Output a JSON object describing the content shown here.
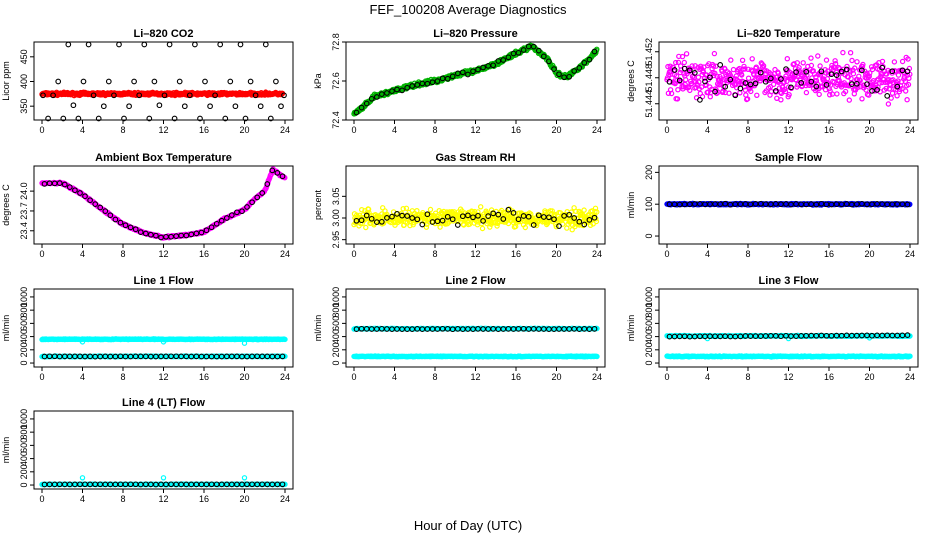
{
  "figure": {
    "title": "FEF_100208  Average Diagnostics",
    "xlabel": "Hour of Day (UTC)"
  },
  "chart_data": [
    {
      "type": "scatter",
      "title": "Li–820 CO2",
      "ylabel": "Licor ppm",
      "xlim": [
        0,
        24
      ],
      "ylim": [
        322,
        480
      ],
      "xticks": [
        0,
        4,
        8,
        12,
        16,
        20,
        24
      ],
      "yticks": [
        350,
        400,
        450
      ],
      "ytick_labels": [
        "350",
        "400",
        "450"
      ],
      "colors": {
        "dense": "#ff0000",
        "avg": "#000000"
      },
      "dense": {
        "kind": "noise",
        "x0": 0,
        "x1": 23.8,
        "base": [
          [
            0,
            375
          ],
          [
            24,
            375
          ]
        ],
        "noise": 4
      },
      "avg": {
        "kind": "list",
        "points": [
          [
            0.1,
            372
          ],
          [
            0.6,
            325
          ],
          [
            1.1,
            372
          ],
          [
            1.6,
            400
          ],
          [
            2.1,
            325
          ],
          [
            2.6,
            475
          ],
          [
            3.1,
            352
          ],
          [
            3.6,
            325
          ],
          [
            4.1,
            400
          ],
          [
            4.6,
            475
          ],
          [
            5.1,
            372
          ],
          [
            5.6,
            325
          ],
          [
            6.1,
            350
          ],
          [
            6.6,
            400
          ],
          [
            7.1,
            372
          ],
          [
            7.6,
            475
          ],
          [
            8.1,
            325
          ],
          [
            8.6,
            350
          ],
          [
            9.1,
            400
          ],
          [
            9.6,
            372
          ],
          [
            10.1,
            475
          ],
          [
            10.6,
            325
          ],
          [
            11.1,
            400
          ],
          [
            11.6,
            352
          ],
          [
            12.1,
            372
          ],
          [
            12.6,
            475
          ],
          [
            13.1,
            325
          ],
          [
            13.6,
            400
          ],
          [
            14.1,
            350
          ],
          [
            14.6,
            372
          ],
          [
            15.1,
            475
          ],
          [
            15.6,
            325
          ],
          [
            16.1,
            400
          ],
          [
            16.6,
            350
          ],
          [
            17.1,
            372
          ],
          [
            17.6,
            475
          ],
          [
            18.1,
            325
          ],
          [
            18.6,
            400
          ],
          [
            19.1,
            350
          ],
          [
            19.6,
            475
          ],
          [
            20.1,
            325
          ],
          [
            20.6,
            400
          ],
          [
            21.1,
            372
          ],
          [
            21.6,
            350
          ],
          [
            22.1,
            475
          ],
          [
            22.6,
            325
          ],
          [
            23.1,
            400
          ],
          [
            23.6,
            350
          ],
          [
            23.9,
            372
          ]
        ]
      }
    },
    {
      "type": "scatter",
      "title": "Li–820 Pressure",
      "ylabel": "kPa",
      "xlim": [
        0,
        24
      ],
      "ylim": [
        72.4,
        72.8
      ],
      "xticks": [
        0,
        4,
        8,
        12,
        16,
        20,
        24
      ],
      "yticks": [
        72.4,
        72.6,
        72.8
      ],
      "ytick_labels": [
        "72.4",
        "72.6",
        "72.8"
      ],
      "colors": {
        "dense": "#00b300",
        "avg": "#000000"
      },
      "dense": {
        "kind": "noise",
        "x0": 0,
        "x1": 24,
        "base": [
          [
            0,
            72.43
          ],
          [
            1,
            72.47
          ],
          [
            2,
            72.52
          ],
          [
            4,
            72.55
          ],
          [
            6,
            72.58
          ],
          [
            8,
            72.6
          ],
          [
            10,
            72.63
          ],
          [
            12,
            72.65
          ],
          [
            14,
            72.69
          ],
          [
            16,
            72.74
          ],
          [
            17.5,
            72.78
          ],
          [
            19,
            72.72
          ],
          [
            20,
            72.64
          ],
          [
            21,
            72.62
          ],
          [
            22,
            72.66
          ],
          [
            23,
            72.7
          ],
          [
            24,
            72.76
          ]
        ],
        "noise": 0.015
      },
      "avg": {
        "kind": "curve",
        "x0": 0.25,
        "x1": 23.75,
        "step": 0.5,
        "base": [
          [
            0,
            72.43
          ],
          [
            1,
            72.47
          ],
          [
            2,
            72.52
          ],
          [
            4,
            72.55
          ],
          [
            6,
            72.58
          ],
          [
            8,
            72.6
          ],
          [
            10,
            72.63
          ],
          [
            12,
            72.65
          ],
          [
            14,
            72.69
          ],
          [
            16,
            72.74
          ],
          [
            17.5,
            72.78
          ],
          [
            19,
            72.72
          ],
          [
            20,
            72.64
          ],
          [
            21,
            72.62
          ],
          [
            22,
            72.66
          ],
          [
            23,
            72.7
          ],
          [
            24,
            72.76
          ]
        ],
        "noise": 0.012
      }
    },
    {
      "type": "scatter",
      "title": "Li–820 Temperature",
      "ylabel": "degrees C",
      "xlim": [
        0,
        24
      ],
      "ylim": [
        51.4415,
        51.4535
      ],
      "xticks": [
        0,
        4,
        8,
        12,
        16,
        20,
        24
      ],
      "yticks": [
        51.444,
        51.448,
        51.452
      ],
      "ytick_labels": [
        "51.444",
        "51.448",
        "51.452"
      ],
      "colors": {
        "dense": "#ff00ff",
        "avg": "#000000"
      },
      "dense": {
        "kind": "noise",
        "x0": 0,
        "x1": 24,
        "base": [
          [
            0,
            51.4478
          ],
          [
            24,
            51.4478
          ]
        ],
        "noise": 0.0045
      },
      "avg": {
        "kind": "curve",
        "x0": 0.25,
        "x1": 23.75,
        "step": 0.5,
        "base": [
          [
            0,
            51.4478
          ],
          [
            24,
            51.4478
          ]
        ],
        "noise": 0.0035
      }
    },
    {
      "type": "scatter",
      "title": "Ambient Box Temperature",
      "ylabel": "degrees C",
      "xlim": [
        0,
        24
      ],
      "ylim": [
        23.2,
        24.38
      ],
      "xticks": [
        0,
        4,
        8,
        12,
        16,
        20,
        24
      ],
      "yticks": [
        23.4,
        23.7,
        24.0
      ],
      "ytick_labels": [
        "23.4",
        "23.7",
        "24.0"
      ],
      "colors": {
        "dense": "#ff00ff",
        "avg": "#000000"
      },
      "dense": {
        "kind": "noise",
        "x0": 0,
        "x1": 24,
        "base": [
          [
            0,
            24.12
          ],
          [
            2,
            24.12
          ],
          [
            4,
            23.95
          ],
          [
            6,
            23.72
          ],
          [
            8,
            23.5
          ],
          [
            10,
            23.37
          ],
          [
            12,
            23.3
          ],
          [
            14,
            23.33
          ],
          [
            16,
            23.38
          ],
          [
            18,
            23.58
          ],
          [
            20,
            23.72
          ],
          [
            21,
            23.88
          ],
          [
            22,
            24.0
          ],
          [
            22.8,
            24.33
          ],
          [
            23.4,
            24.26
          ],
          [
            24,
            24.2
          ]
        ],
        "noise": 0.02
      },
      "avg": {
        "kind": "curve",
        "x0": 0.25,
        "x1": 23.75,
        "step": 0.5,
        "base": [
          [
            0,
            24.12
          ],
          [
            2,
            24.12
          ],
          [
            4,
            23.95
          ],
          [
            6,
            23.72
          ],
          [
            8,
            23.5
          ],
          [
            10,
            23.37
          ],
          [
            12,
            23.3
          ],
          [
            14,
            23.33
          ],
          [
            16,
            23.38
          ],
          [
            18,
            23.58
          ],
          [
            20,
            23.72
          ],
          [
            21,
            23.88
          ],
          [
            22,
            24.0
          ],
          [
            22.8,
            24.33
          ],
          [
            23.4,
            24.26
          ],
          [
            24,
            24.2
          ]
        ],
        "noise": 0.015
      }
    },
    {
      "type": "scatter",
      "title": "Gas Stream RH",
      "ylabel": "percent",
      "xlim": [
        0,
        24
      ],
      "ylim": [
        2.94,
        3.12
      ],
      "xticks": [
        0,
        4,
        8,
        12,
        16,
        20,
        24
      ],
      "yticks": [
        2.95,
        3.0,
        3.05
      ],
      "ytick_labels": [
        "2.95",
        "3.00",
        "3.05"
      ],
      "colors": {
        "dense": "#ffff00",
        "avg": "#000000"
      },
      "dense": {
        "kind": "noise",
        "x0": 0,
        "x1": 24,
        "base": [
          [
            0,
            3.0
          ],
          [
            24,
            3.0
          ]
        ],
        "noise": 0.03
      },
      "avg": {
        "kind": "curve",
        "x0": 0.25,
        "x1": 23.75,
        "step": 0.5,
        "base": [
          [
            0,
            3.0
          ],
          [
            24,
            3.0
          ]
        ],
        "noise": 0.025
      }
    },
    {
      "type": "scatter",
      "title": "Sample Flow",
      "ylabel": "ml/min",
      "xlim": [
        0,
        24
      ],
      "ylim": [
        -25,
        220
      ],
      "xticks": [
        0,
        4,
        8,
        12,
        16,
        20,
        24
      ],
      "yticks": [
        0,
        100,
        200
      ],
      "ytick_labels": [
        "0",
        "100",
        "200"
      ],
      "colors": {
        "dense": "#0000ff",
        "avg": "#000000"
      },
      "dense": {
        "kind": "noise",
        "x0": 0,
        "x1": 24,
        "base": [
          [
            0,
            100
          ],
          [
            24,
            100
          ]
        ],
        "noise": 3
      },
      "avg": {
        "kind": "curve",
        "x0": 0.25,
        "x1": 23.75,
        "step": 0.5,
        "base": [
          [
            0,
            100
          ],
          [
            24,
            100
          ]
        ],
        "noise": 2
      }
    },
    {
      "type": "scatter",
      "title": "Line 1 Flow",
      "ylabel": "ml/min",
      "xlim": [
        0,
        24
      ],
      "ylim": [
        -60,
        1120
      ],
      "xticks": [
        0,
        4,
        8,
        12,
        16,
        20,
        24
      ],
      "yticks": [
        0,
        200,
        400,
        600,
        800,
        1000
      ],
      "ytick_labels": [
        "0",
        "200",
        "400",
        "600",
        "800",
        "1000"
      ],
      "colors": {
        "dense": "#00ffff",
        "avg": "#000000"
      },
      "dense": {
        "kind": "bands",
        "x0": 0,
        "x1": 24,
        "levels": [
          360,
          100
        ],
        "noise": 8,
        "spikes": [
          [
            4,
            320
          ],
          [
            12,
            320
          ],
          [
            20,
            300
          ]
        ]
      },
      "avg": {
        "kind": "curve",
        "x0": 0.25,
        "x1": 23.75,
        "step": 0.5,
        "base": [
          [
            0,
            100
          ],
          [
            24,
            100
          ]
        ],
        "noise": 3
      }
    },
    {
      "type": "scatter",
      "title": "Line 2 Flow",
      "ylabel": "ml/min",
      "xlim": [
        0,
        24
      ],
      "ylim": [
        -60,
        1120
      ],
      "xticks": [
        0,
        4,
        8,
        12,
        16,
        20,
        24
      ],
      "yticks": [
        0,
        200,
        400,
        600,
        800,
        1000
      ],
      "ytick_labels": [
        "0",
        "200",
        "400",
        "600",
        "800",
        "1000"
      ],
      "colors": {
        "dense": "#00ffff",
        "avg": "#000000"
      },
      "dense": {
        "kind": "bands",
        "x0": 0,
        "x1": 24,
        "levels": [
          520,
          100
        ],
        "noise": 8,
        "spikes": []
      },
      "avg": {
        "kind": "curve",
        "x0": 0.25,
        "x1": 23.75,
        "step": 0.5,
        "base": [
          [
            0,
            515
          ],
          [
            24,
            515
          ]
        ],
        "noise": 4
      }
    },
    {
      "type": "scatter",
      "title": "Line 3 Flow",
      "ylabel": "ml/min",
      "xlim": [
        0,
        24
      ],
      "ylim": [
        -60,
        1120
      ],
      "xticks": [
        0,
        4,
        8,
        12,
        16,
        20,
        24
      ],
      "yticks": [
        0,
        200,
        400,
        600,
        800,
        1000
      ],
      "ytick_labels": [
        "0",
        "200",
        "400",
        "600",
        "800",
        "1000"
      ],
      "colors": {
        "dense": "#00ffff",
        "avg": "#000000"
      },
      "dense": {
        "kind": "bands",
        "x0": 0,
        "x1": 24,
        "levels": [
          410,
          100
        ],
        "noise": 10,
        "spikes": [
          [
            4,
            370
          ],
          [
            12,
            370
          ],
          [
            20,
            380
          ]
        ]
      },
      "avg": {
        "kind": "curve",
        "x0": 0.25,
        "x1": 23.75,
        "step": 0.5,
        "base": [
          [
            0,
            400
          ],
          [
            24,
            420
          ]
        ],
        "noise": 5
      }
    },
    {
      "type": "scatter",
      "title": "Line 4 (LT) Flow",
      "ylabel": "ml/min",
      "xlim": [
        0,
        24
      ],
      "ylim": [
        -60,
        1120
      ],
      "xticks": [
        0,
        4,
        8,
        12,
        16,
        20,
        24
      ],
      "yticks": [
        0,
        200,
        400,
        600,
        800,
        1000
      ],
      "ytick_labels": [
        "0",
        "200",
        "400",
        "600",
        "800",
        "1000"
      ],
      "colors": {
        "dense": "#00ffff",
        "avg": "#000000"
      },
      "dense": {
        "kind": "bands",
        "x0": 0,
        "x1": 24,
        "levels": [
          10
        ],
        "noise": 6,
        "spikes": [
          [
            4,
            110
          ],
          [
            12,
            110
          ],
          [
            20,
            110
          ]
        ]
      },
      "avg": {
        "kind": "curve",
        "x0": 0.25,
        "x1": 23.75,
        "step": 0.5,
        "base": [
          [
            0,
            10
          ],
          [
            24,
            10
          ]
        ],
        "noise": 3
      }
    }
  ]
}
